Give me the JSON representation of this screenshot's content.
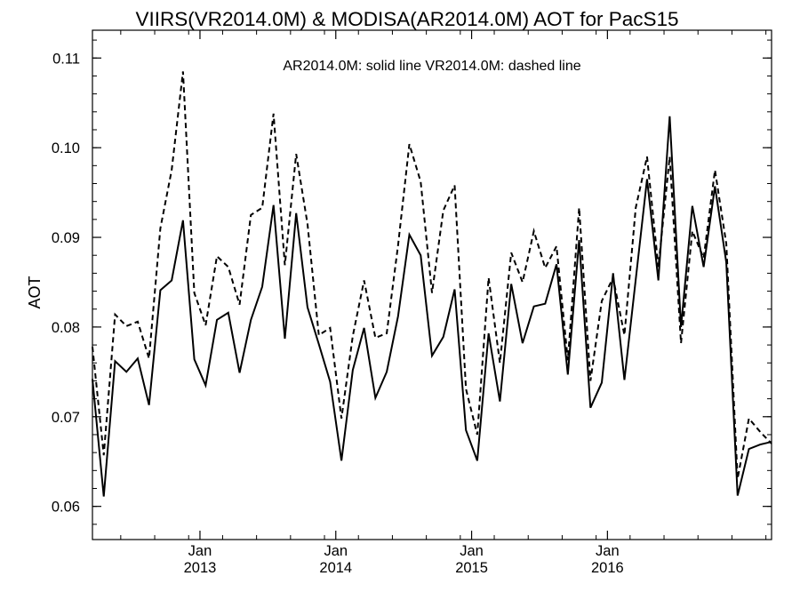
{
  "chart_data": {
    "type": "line",
    "title": "VIIRS(VR2014.0M) & MODISA(AR2014.0M)  AOT for PacS15",
    "annotation": "AR2014.0M: solid line   VR2014.0M: dashed line",
    "ylabel": "AOT",
    "xlabel": "",
    "ylim": [
      0.0563,
      0.1131
    ],
    "grid": false,
    "yticks": [
      0.06,
      0.07,
      0.08,
      0.09,
      0.1,
      0.11
    ],
    "ytick_labels": [
      "0.06",
      "0.07",
      "0.08",
      "0.09",
      "0.10",
      "0.11"
    ],
    "xticks": [
      {
        "month": "2013-01",
        "label_top": "Jan",
        "label_bottom": "2013"
      },
      {
        "month": "2014-01",
        "label_top": "Jan",
        "label_bottom": "2014"
      },
      {
        "month": "2015-01",
        "label_top": "Jan",
        "label_bottom": "2015"
      },
      {
        "month": "2016-01",
        "label_top": "Jan",
        "label_bottom": "2016"
      }
    ],
    "x": [
      "2012-03",
      "2012-04",
      "2012-05",
      "2012-06",
      "2012-07",
      "2012-08",
      "2012-09",
      "2012-10",
      "2012-11",
      "2012-12",
      "2013-01",
      "2013-02",
      "2013-03",
      "2013-04",
      "2013-05",
      "2013-06",
      "2013-07",
      "2013-08",
      "2013-09",
      "2013-10",
      "2013-11",
      "2013-12",
      "2014-01",
      "2014-02",
      "2014-03",
      "2014-04",
      "2014-05",
      "2014-06",
      "2014-07",
      "2014-08",
      "2014-09",
      "2014-10",
      "2014-11",
      "2014-12",
      "2015-01",
      "2015-02",
      "2015-03",
      "2015-04",
      "2015-05",
      "2015-06",
      "2015-07",
      "2015-08",
      "2015-09",
      "2015-10",
      "2015-11",
      "2015-12",
      "2016-01",
      "2016-02",
      "2016-03",
      "2016-04",
      "2016-05",
      "2016-06",
      "2016-07",
      "2016-08",
      "2016-09",
      "2016-10",
      "2016-11",
      "2016-12",
      "2017-01",
      "2017-02",
      "2017-03"
    ],
    "series": [
      {
        "name": "AR2014.0M",
        "style": "solid",
        "values": [
          0.0742,
          0.0611,
          0.0762,
          0.075,
          0.0765,
          0.0713,
          0.0841,
          0.0852,
          0.0919,
          0.0764,
          0.0735,
          0.0808,
          0.0816,
          0.0749,
          0.0808,
          0.0845,
          0.0936,
          0.0787,
          0.0927,
          0.0822,
          0.0781,
          0.0739,
          0.0651,
          0.0752,
          0.0799,
          0.0721,
          0.075,
          0.0812,
          0.0903,
          0.088,
          0.0768,
          0.0789,
          0.0842,
          0.0685,
          0.0651,
          0.0793,
          0.0717,
          0.0848,
          0.0782,
          0.0823,
          0.0826,
          0.087,
          0.0747,
          0.0897,
          0.071,
          0.0738,
          0.086,
          0.0741,
          0.0853,
          0.0965,
          0.0852,
          0.1035,
          0.08,
          0.0935,
          0.0867,
          0.0957,
          0.0872,
          0.0612,
          0.0664,
          0.0669,
          0.0672
        ]
      },
      {
        "name": "VR2014.0M",
        "style": "dashed",
        "values": [
          0.0778,
          0.0657,
          0.0814,
          0.0801,
          0.0806,
          0.0765,
          0.091,
          0.0975,
          0.1085,
          0.0838,
          0.0802,
          0.0879,
          0.0867,
          0.0825,
          0.0925,
          0.0933,
          0.1038,
          0.0869,
          0.0993,
          0.0915,
          0.0791,
          0.0799,
          0.0698,
          0.079,
          0.0852,
          0.0788,
          0.0793,
          0.0891,
          0.1004,
          0.0962,
          0.0838,
          0.093,
          0.0958,
          0.0731,
          0.068,
          0.0855,
          0.076,
          0.0883,
          0.085,
          0.0907,
          0.0866,
          0.089,
          0.0763,
          0.0933,
          0.074,
          0.0829,
          0.0855,
          0.0791,
          0.0933,
          0.099,
          0.0867,
          0.099,
          0.0782,
          0.0907,
          0.0877,
          0.0975,
          0.0893,
          0.0631,
          0.0698,
          0.0683,
          0.067
        ]
      }
    ]
  }
}
